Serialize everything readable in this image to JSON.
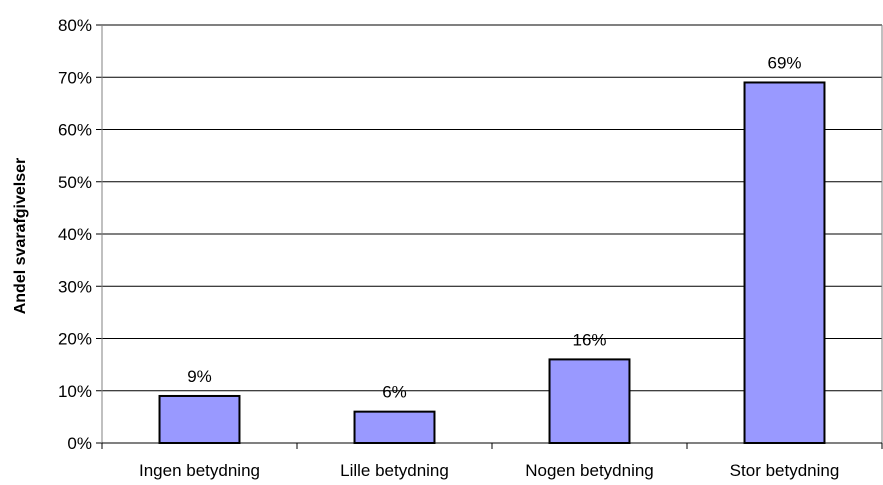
{
  "chart_data": {
    "type": "bar",
    "categories": [
      "Ingen betydning",
      "Lille betydning",
      "Nogen betydning",
      "Stor betydning"
    ],
    "values": [
      9,
      6,
      16,
      69
    ],
    "data_labels": [
      "9%",
      "6%",
      "16%",
      "69%"
    ],
    "ylabel": "Andel svarafgivelser",
    "ylim": [
      0,
      80
    ],
    "yticks": [
      0,
      10,
      20,
      30,
      40,
      50,
      60,
      70,
      80
    ],
    "ytick_labels": [
      "0%",
      "10%",
      "20%",
      "30%",
      "40%",
      "50%",
      "60%",
      "70%",
      "80%"
    ],
    "grid": true,
    "legend": "none",
    "colors": {
      "bar_fill": "#9999FF",
      "bar_stroke": "#000000",
      "grid": "#000000"
    }
  }
}
